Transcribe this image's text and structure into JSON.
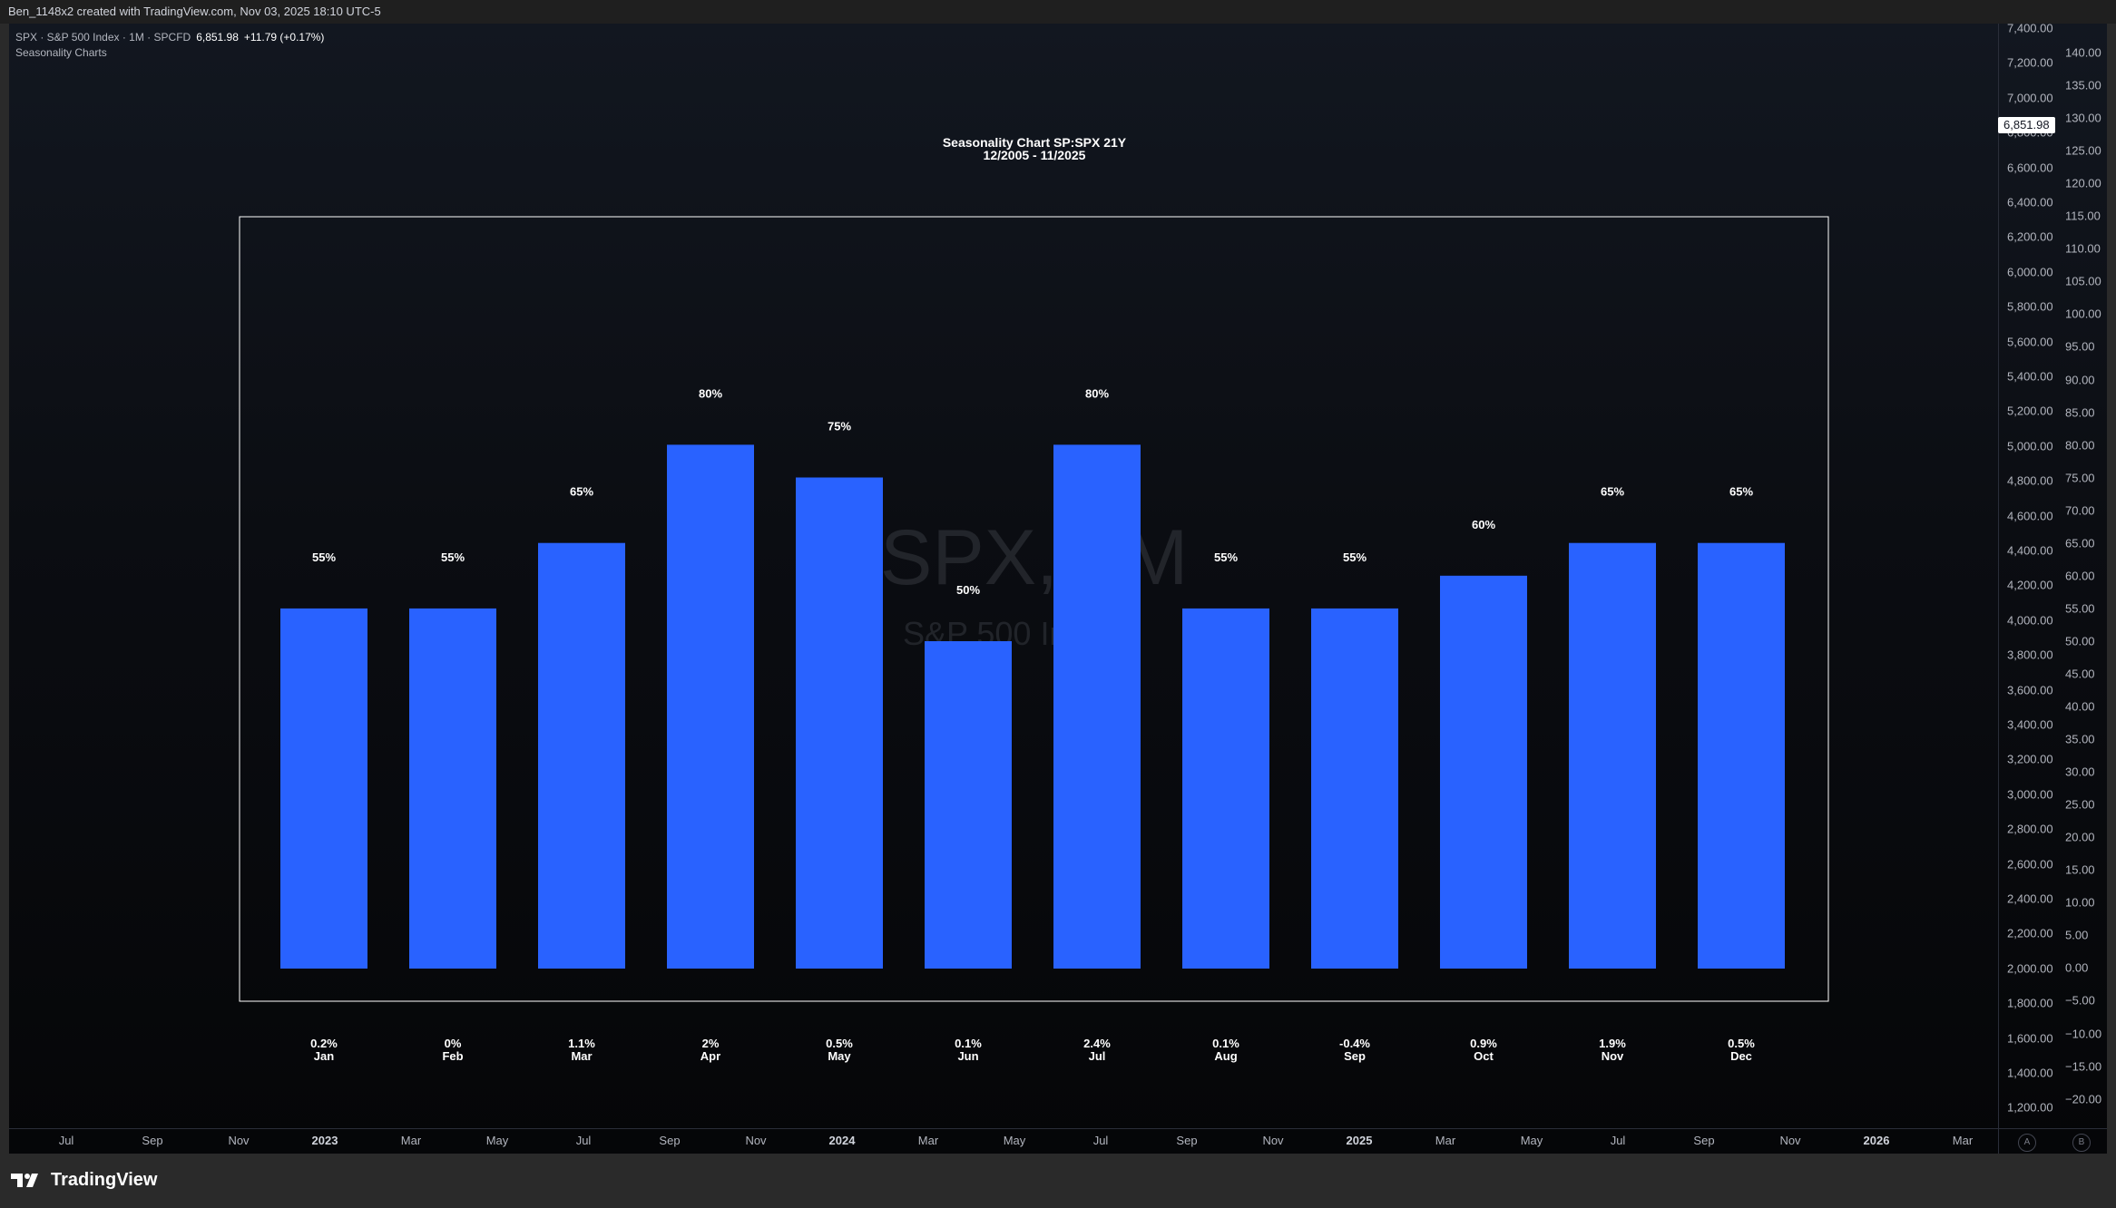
{
  "header": {
    "attribution": "Ben_1148x2 created with TradingView.com, Nov 03, 2025 18:10 UTC-5"
  },
  "legend": {
    "symbol_line": "SPX · S&P 500 Index · 1M · SPCFD",
    "price": "6,851.98",
    "change": "+11.79 (+0.17%)",
    "indicator": "Seasonality Charts"
  },
  "watermark": {
    "symbol": "SPX, 1M",
    "description": "S&P 500 Index"
  },
  "colors": {
    "bar": "#2962ff",
    "box": "#ffffff",
    "background": "#0b0d12"
  },
  "price_axis": {
    "ticks": [
      "7,400.00",
      "7,200.00",
      "7,000.00",
      "6,800.00",
      "6,600.00",
      "6,400.00",
      "6,200.00",
      "6,000.00",
      "5,800.00",
      "5,600.00",
      "5,400.00",
      "5,200.00",
      "5,000.00",
      "4,800.00",
      "4,600.00",
      "4,400.00",
      "4,200.00",
      "4,000.00",
      "3,800.00",
      "3,600.00",
      "3,400.00",
      "3,200.00",
      "3,000.00",
      "2,800.00",
      "2,600.00",
      "2,400.00",
      "2,200.00",
      "2,000.00",
      "1,800.00",
      "1,600.00",
      "1,400.00",
      "1,200.00"
    ],
    "current_price": "6,851.98"
  },
  "indicator_axis": {
    "ticks": [
      "140.00",
      "135.00",
      "130.00",
      "125.00",
      "120.00",
      "115.00",
      "110.00",
      "105.00",
      "100.00",
      "95.00",
      "90.00",
      "85.00",
      "80.00",
      "75.00",
      "70.00",
      "65.00",
      "60.00",
      "55.00",
      "50.00",
      "45.00",
      "40.00",
      "35.00",
      "30.00",
      "25.00",
      "20.00",
      "15.00",
      "10.00",
      "5.00",
      "0.00",
      "−5.00",
      "−10.00",
      "−15.00",
      "−20.00"
    ]
  },
  "time_axis": {
    "labels": [
      "Jul",
      "Sep",
      "Nov",
      "2023",
      "Mar",
      "May",
      "Jul",
      "Sep",
      "Nov",
      "2024",
      "Mar",
      "May",
      "Jul",
      "Sep",
      "Nov",
      "2025",
      "Mar",
      "May",
      "Jul",
      "Sep",
      "Nov",
      "2026",
      "Mar"
    ],
    "bold": [
      "2023",
      "2024",
      "2025",
      "2026"
    ]
  },
  "controls": {
    "auto_label": "A",
    "log_label": "B"
  },
  "footer": {
    "brand": "TradingView"
  },
  "chart_data": {
    "type": "bar",
    "title": "Seasonality Chart SP:SPX 21Y",
    "subtitle": "12/2005 - 11/2025",
    "categories": [
      "Jan",
      "Feb",
      "Mar",
      "Apr",
      "May",
      "Jun",
      "Jul",
      "Aug",
      "Sep",
      "Oct",
      "Nov",
      "Dec"
    ],
    "values": [
      55,
      55,
      65,
      80,
      75,
      50,
      80,
      55,
      55,
      60,
      65,
      65
    ],
    "value_labels": [
      "55%",
      "55%",
      "65%",
      "80%",
      "75%",
      "50%",
      "80%",
      "55%",
      "55%",
      "60%",
      "65%",
      "65%"
    ],
    "avg_returns": [
      "0.2%",
      "0%",
      "1.1%",
      "2%",
      "0.5%",
      "0.1%",
      "2.4%",
      "0.1%",
      "-0.4%",
      "0.9%",
      "1.9%",
      "0.5%"
    ],
    "ylim": [
      0,
      140
    ],
    "xlabel": "",
    "ylabel": ""
  }
}
